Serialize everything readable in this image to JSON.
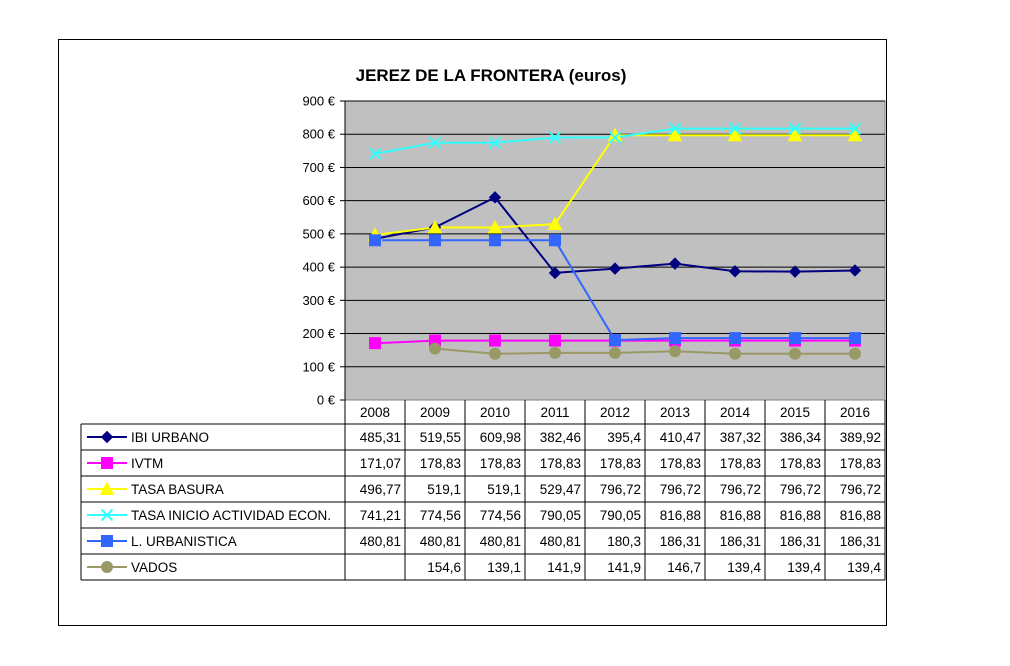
{
  "chart_data": {
    "type": "line",
    "title": "JEREZ DE LA FRONTERA (euros)",
    "categories": [
      "2008",
      "2009",
      "2010",
      "2011",
      "2012",
      "2013",
      "2014",
      "2015",
      "2016"
    ],
    "ylim": [
      0,
      900
    ],
    "yticks": [
      0,
      100,
      200,
      300,
      400,
      500,
      600,
      700,
      800,
      900
    ],
    "ytick_labels": [
      "0 €",
      "100 €",
      "200 €",
      "300 €",
      "400 €",
      "500 €",
      "600 €",
      "700 €",
      "800 €",
      "900 €"
    ],
    "grid": true,
    "legend": "data-table-left",
    "series": [
      {
        "name": "IBI URBANO",
        "color": "#000080",
        "marker": "diamond",
        "values": [
          485.31,
          519.55,
          609.98,
          382.46,
          395.4,
          410.47,
          387.32,
          386.34,
          389.92
        ],
        "labels": [
          "485,31",
          "519,55",
          "609,98",
          "382,46",
          "395,4",
          "410,47",
          "387,32",
          "386,34",
          "389,92"
        ]
      },
      {
        "name": "IVTM",
        "color": "#ff00ff",
        "marker": "square",
        "values": [
          171.07,
          178.83,
          178.83,
          178.83,
          178.83,
          178.83,
          178.83,
          178.83,
          178.83
        ],
        "labels": [
          "171,07",
          "178,83",
          "178,83",
          "178,83",
          "178,83",
          "178,83",
          "178,83",
          "178,83",
          "178,83"
        ]
      },
      {
        "name": "TASA BASURA",
        "color": "#ffff00",
        "marker": "triangle",
        "values": [
          496.77,
          519.1,
          519.1,
          529.47,
          796.72,
          796.72,
          796.72,
          796.72,
          796.72
        ],
        "labels": [
          "496,77",
          "519,1",
          "519,1",
          "529,47",
          "796,72",
          "796,72",
          "796,72",
          "796,72",
          "796,72"
        ]
      },
      {
        "name": "TASA INICIO ACTIVIDAD ECON.",
        "color": "#33ffff",
        "marker": "x",
        "values": [
          741.21,
          774.56,
          774.56,
          790.05,
          790.05,
          816.88,
          816.88,
          816.88,
          816.88
        ],
        "labels": [
          "741,21",
          "774,56",
          "774,56",
          "790,05",
          "790,05",
          "816,88",
          "816,88",
          "816,88",
          "816,88"
        ]
      },
      {
        "name": "L. URBANISTICA",
        "color": "#3366ff",
        "marker": "square",
        "values": [
          480.81,
          480.81,
          480.81,
          480.81,
          180.3,
          186.31,
          186.31,
          186.31,
          186.31
        ],
        "labels": [
          "480,81",
          "480,81",
          "480,81",
          "480,81",
          "180,3",
          "186,31",
          "186,31",
          "186,31",
          "186,31"
        ]
      },
      {
        "name": "VADOS",
        "color": "#999966",
        "marker": "circle",
        "values": [
          null,
          154.6,
          139.1,
          141.9,
          141.9,
          146.7,
          139.4,
          139.4,
          139.4
        ],
        "labels": [
          "",
          "154,6",
          "139,1",
          "141,9",
          "141,9",
          "146,7",
          "139,4",
          "139,4",
          "139,4"
        ]
      }
    ]
  }
}
